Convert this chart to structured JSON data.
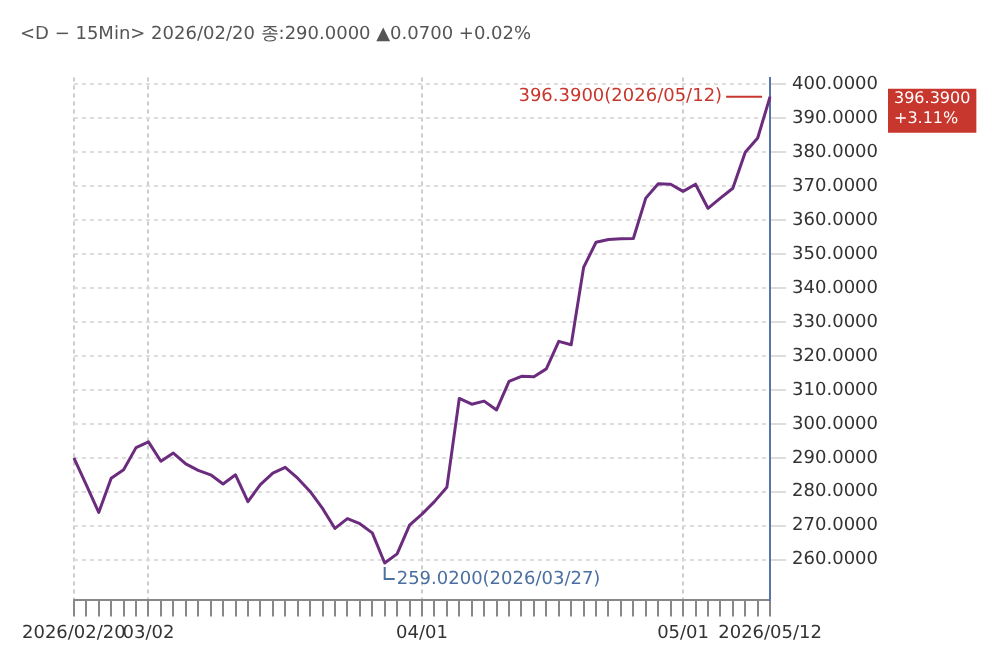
{
  "chart_data": {
    "type": "line",
    "subtitle": "<D − 15Min> 2026/02/20 종:290.0000 ▲0.0700 +0.02%",
    "categories": [
      "2026/02/20",
      null,
      null,
      null,
      null,
      null,
      "03/02",
      null,
      null,
      null,
      null,
      null,
      null,
      null,
      null,
      null,
      null,
      null,
      null,
      null,
      null,
      null,
      null,
      null,
      null,
      null,
      null,
      null,
      "04/01",
      null,
      null,
      null,
      null,
      null,
      null,
      null,
      null,
      null,
      null,
      null,
      null,
      null,
      null,
      null,
      null,
      null,
      null,
      null,
      null,
      "05/01",
      null,
      null,
      null,
      null,
      null,
      null,
      "2026/05/12"
    ],
    "series": [
      {
        "color": "#6b2c7e",
        "values": [
          290,
          282,
          273.9,
          284,
          286.5,
          293,
          294.7,
          289,
          291.4,
          288.2,
          286.3,
          285,
          282.3,
          285,
          277.1,
          282.1,
          285.5,
          287.2,
          284,
          280.1,
          275.1,
          269.2,
          272.1,
          270.6,
          267.9,
          259.02,
          261.7,
          270.2,
          273.4,
          277.1,
          281.3,
          307.5,
          305.8,
          306.7,
          304.1,
          312.5,
          314,
          313.9,
          316.2,
          324.3,
          323.3,
          346.1,
          353.5,
          354.3,
          354.5,
          354.6,
          366.5,
          370.7,
          370.6,
          368.5,
          370.6,
          363.5,
          366.5,
          369.4,
          380,
          384.2,
          396.39
        ]
      }
    ],
    "ylim": [
      248,
      402
    ],
    "yticks": [
      {
        "value": 260,
        "label": "260.0000"
      },
      {
        "value": 270,
        "label": "270.0000"
      },
      {
        "value": 280,
        "label": "280.0000"
      },
      {
        "value": 290,
        "label": "290.0000"
      },
      {
        "value": 300,
        "label": "300.0000"
      },
      {
        "value": 310,
        "label": "310.0000"
      },
      {
        "value": 320,
        "label": "320.0000"
      },
      {
        "value": 330,
        "label": "330.0000"
      },
      {
        "value": 340,
        "label": "340.0000"
      },
      {
        "value": 350,
        "label": "350.0000"
      },
      {
        "value": 360,
        "label": "360.0000"
      },
      {
        "value": 370,
        "label": "370.0000"
      },
      {
        "value": 380,
        "label": "380.0000"
      },
      {
        "value": 390,
        "label": "390.0000"
      },
      {
        "value": 400,
        "label": "400.0000"
      }
    ],
    "grid": true,
    "legend": false,
    "marker": "none",
    "line_style": "solid",
    "annotations": [
      {
        "text": "396.3900(2026/05/12)",
        "x": "2026/05/12",
        "y": 396.39
      },
      "259.0200(2026/03/27)",
      "396.3900 +3.11%"
    ]
  }
}
